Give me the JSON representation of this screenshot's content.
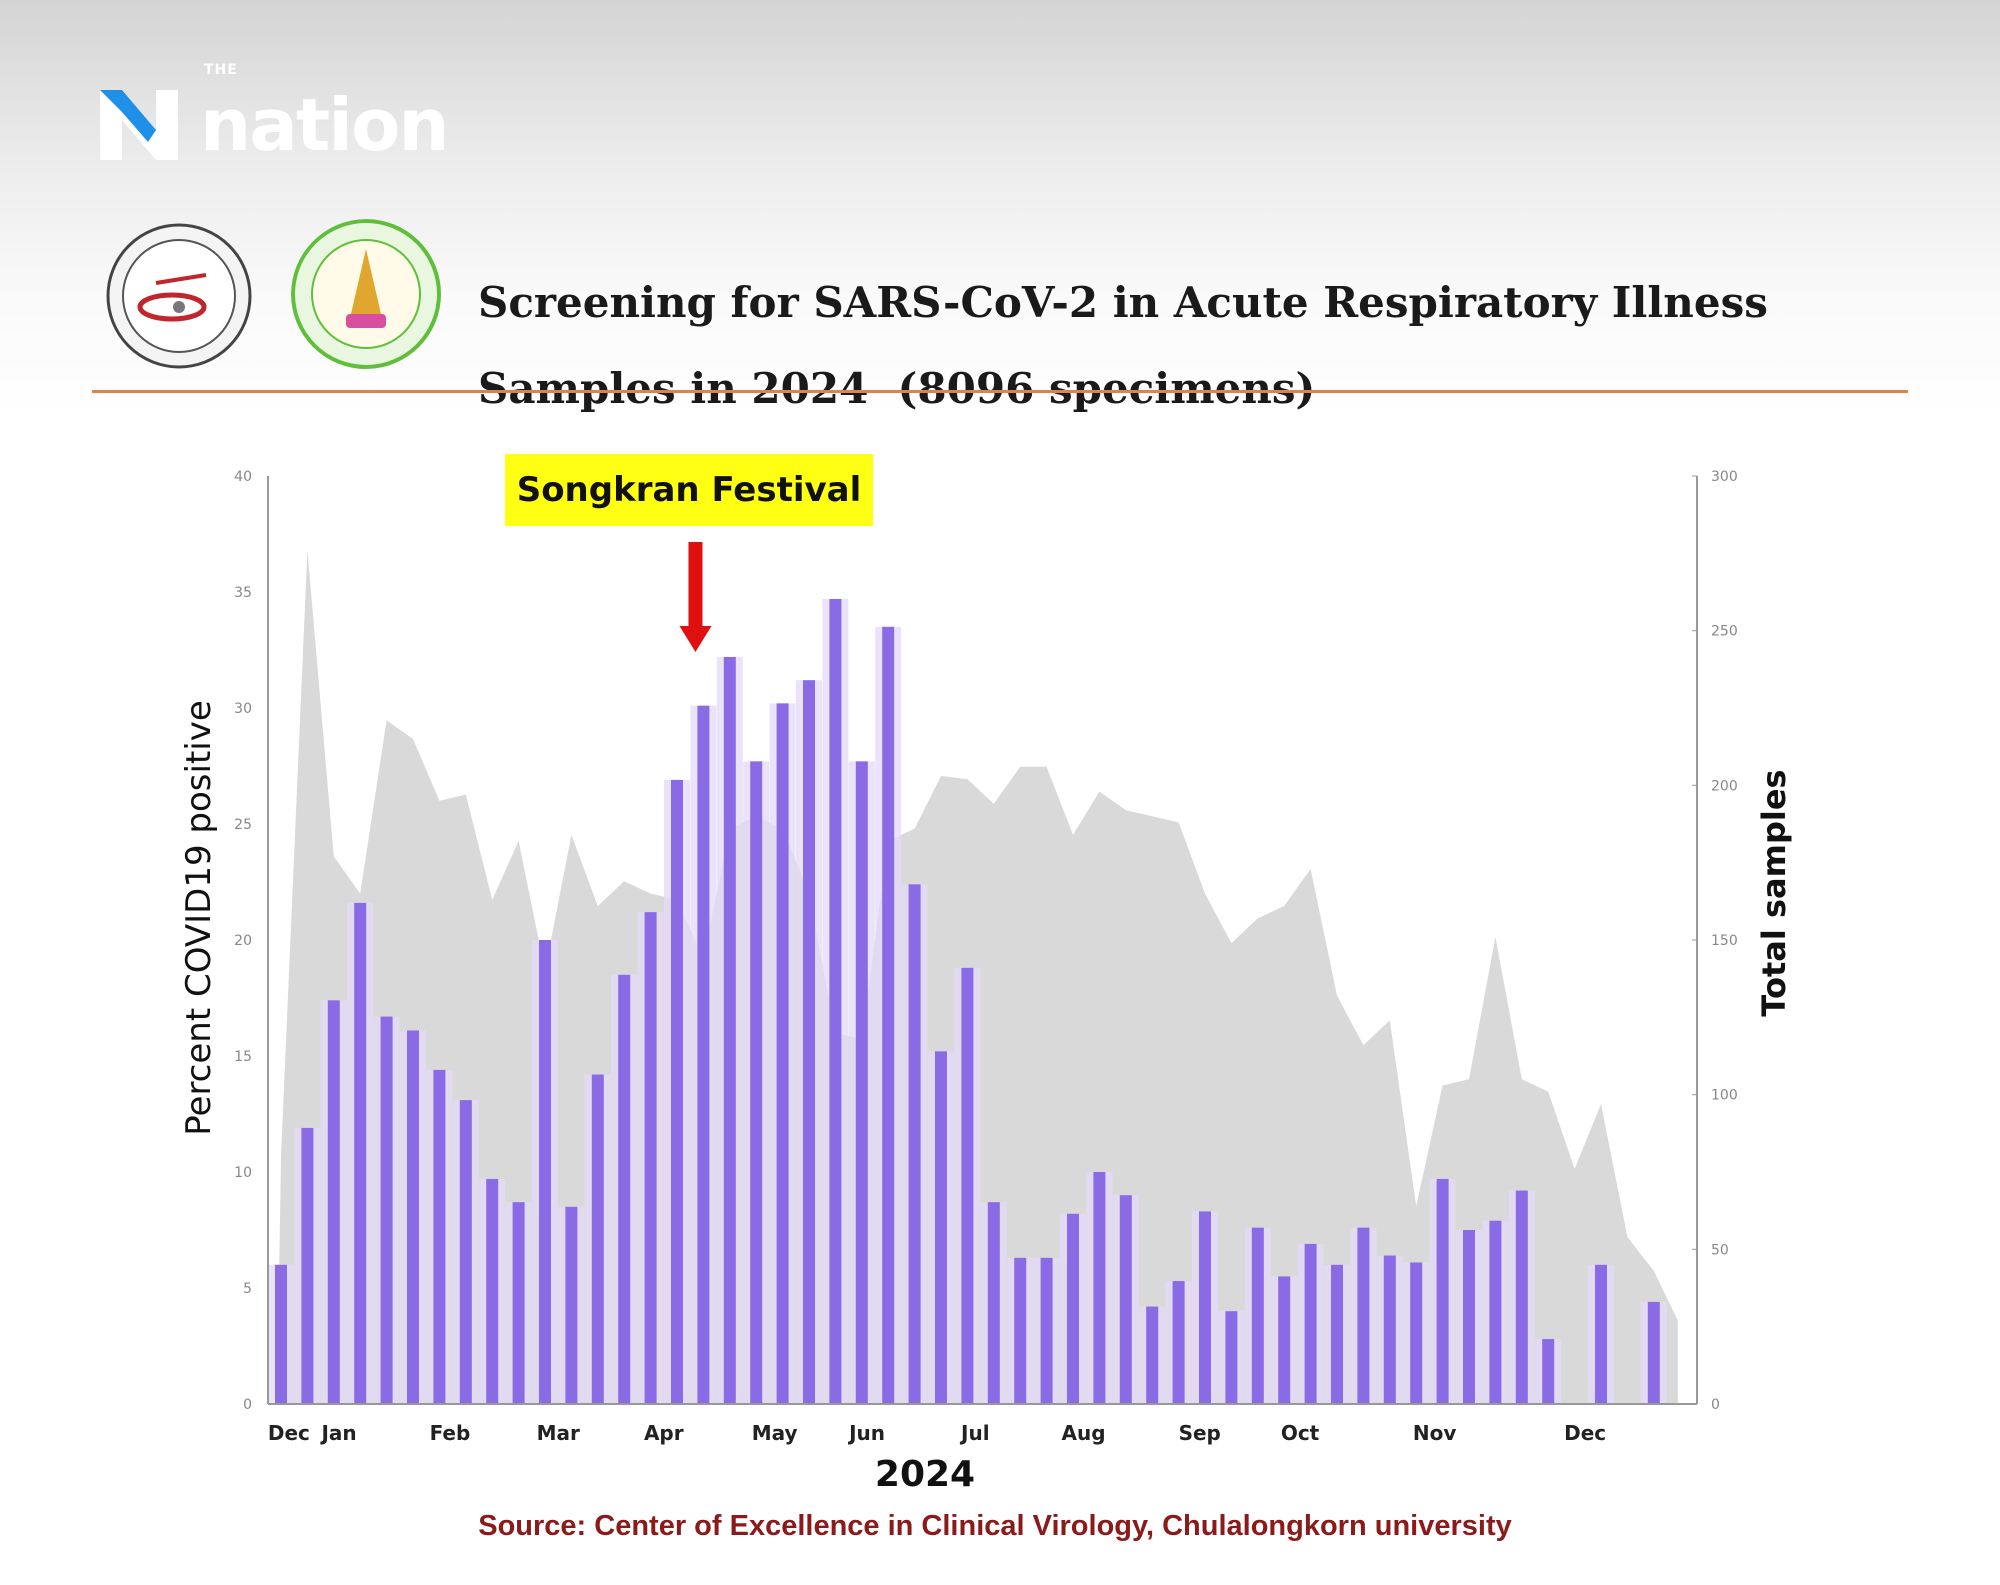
{
  "brand": {
    "logo_small": "THE",
    "logo_word": "nation"
  },
  "header": {
    "title_line1": "Screening for SARS-CoV-2 in Acute Respiratory Illness",
    "title_line2": "Samples in 2024  (8096 specimens)"
  },
  "annotation": {
    "label": "Songkran Festival",
    "arrow_at_week": 16.7,
    "box_color": "#ffff14",
    "arrow_color": "#e01010"
  },
  "source": "Source: Center of Excellence in Clinical Virology, Chulalongkorn university",
  "chart_data": {
    "type": "bar",
    "title": "",
    "xlabel": "2024",
    "ylabel": "Percent COVID19 positive",
    "y2label": "Total samples",
    "ylim": [
      0,
      40
    ],
    "y2lim": [
      0,
      300
    ],
    "yticks": [
      "0",
      "5",
      "10",
      "15",
      "20",
      "25",
      "30",
      "35",
      "40"
    ],
    "y2ticks": [
      "0",
      "50",
      "100",
      "150",
      "200",
      "250",
      "300"
    ],
    "month_ticks": [
      {
        "label": "Dec",
        "week": 1.3
      },
      {
        "label": "Jan",
        "week": 3.2
      },
      {
        "label": "Feb",
        "week": 7.4
      },
      {
        "label": "Mar",
        "week": 11.5
      },
      {
        "label": "Apr",
        "week": 15.5
      },
      {
        "label": "May",
        "week": 19.7
      },
      {
        "label": "Jun",
        "week": 23.2
      },
      {
        "label": "Jul",
        "week": 27.3
      },
      {
        "label": "Aug",
        "week": 31.4
      },
      {
        "label": "Sep",
        "week": 35.8
      },
      {
        "label": "Oct",
        "week": 39.6
      },
      {
        "label": "Nov",
        "week": 44.7
      },
      {
        "label": "Dec",
        "week": 50.4
      }
    ],
    "series": [
      {
        "type": "bar",
        "axis": "left",
        "color": "#8a6be6",
        "values": [
          6.0,
          11.9,
          17.4,
          21.6,
          16.7,
          16.1,
          14.4,
          13.1,
          9.7,
          8.7,
          20.0,
          8.5,
          14.2,
          18.5,
          21.2,
          26.9,
          30.1,
          32.2,
          27.7,
          30.2,
          31.2,
          34.7,
          27.7,
          33.5,
          22.4,
          15.2,
          18.8,
          8.7,
          6.3,
          6.3,
          8.2,
          10.0,
          9.0,
          4.2,
          5.3,
          8.3,
          4.0,
          7.6,
          5.5,
          6.9,
          6.0,
          7.6,
          6.4,
          6.1,
          9.7,
          7.5,
          7.9,
          9.2,
          2.8,
          0,
          6.0,
          0,
          4.4
        ]
      },
      {
        "type": "area",
        "axis": "right",
        "color": "#d9d9d9",
        "values": [
          80,
          276,
          177,
          165,
          221,
          215,
          195,
          197,
          163,
          182,
          140,
          184,
          161,
          169,
          165,
          163,
          144,
          186,
          190,
          186,
          165,
          120,
          118,
          182,
          186,
          203,
          202,
          194,
          206,
          206,
          184,
          198,
          192,
          190,
          188,
          165,
          149,
          157,
          161,
          173,
          132,
          116,
          124,
          64,
          103,
          105,
          151,
          105,
          101,
          76,
          97,
          54,
          43
        ]
      }
    ],
    "legend": "none",
    "grid": false
  }
}
